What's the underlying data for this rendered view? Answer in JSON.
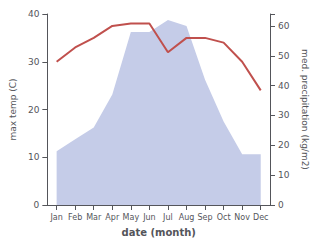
{
  "chart_data": {
    "type": "line",
    "xlabel": "date (month)",
    "ylabel": "max temp (C)",
    "y2label": "med. precipitation (kg/m2)",
    "categories": [
      "Jan",
      "Feb",
      "Mar",
      "Apr",
      "May",
      "Jun",
      "Jul",
      "Aug",
      "Sep",
      "Oct",
      "Nov",
      "Dec"
    ],
    "series": [
      {
        "type": "area",
        "axis": "y2",
        "color": "#c5cce8",
        "values": [
          18,
          22,
          26,
          37,
          58,
          58,
          62,
          60,
          42,
          28,
          17,
          17
        ]
      },
      {
        "type": "line",
        "color": "#c0504d",
        "values": [
          30,
          33,
          35,
          37.5,
          38,
          38,
          32,
          35,
          35,
          34,
          30,
          24
        ]
      }
    ],
    "ylim": [
      0,
      40
    ],
    "yticks": [
      0,
      10,
      20,
      30,
      40
    ],
    "y2lim": [
      0,
      64
    ],
    "y2ticks": [
      0,
      10,
      20,
      30,
      40,
      50,
      60
    ],
    "grid": false
  }
}
